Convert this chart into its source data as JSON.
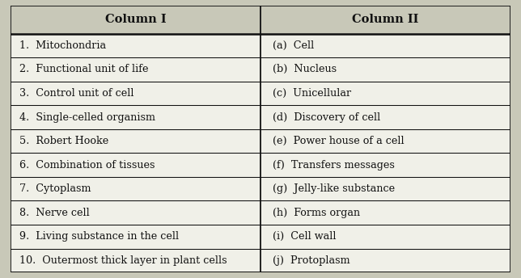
{
  "col1_header": "Column I",
  "col2_header": "Column II",
  "col1_items": [
    "1.  Mitochondria",
    "2.  Functional unit of life",
    "3.  Control unit of cell",
    "4.  Single-celled organism",
    "5.  Robert Hooke",
    "6.  Combination of tissues",
    "7.  Cytoplasm",
    "8.  Nerve cell",
    "9.  Living substance in the cell",
    "10.  Outermost thick layer in plant cells"
  ],
  "col2_items": [
    "(a)  Cell",
    "(b)  Nucleus",
    "(c)  Unicellular",
    "(d)  Discovery of cell",
    "(e)  Power house of a cell",
    "(f)  Transfers messages",
    "(g)  Jelly-like substance",
    "(h)  Forms organ",
    "(i)  Cell wall",
    "(j)  Protoplasm"
  ],
  "bg_color": "#c8c8b8",
  "header_bg": "#c8c8b8",
  "cell_bg": "#f0f0e8",
  "border_color": "#111111",
  "text_color": "#111111",
  "header_fontsize": 10.5,
  "body_fontsize": 9.2,
  "fig_width": 6.44,
  "fig_height": 3.44,
  "col_split": 0.5
}
